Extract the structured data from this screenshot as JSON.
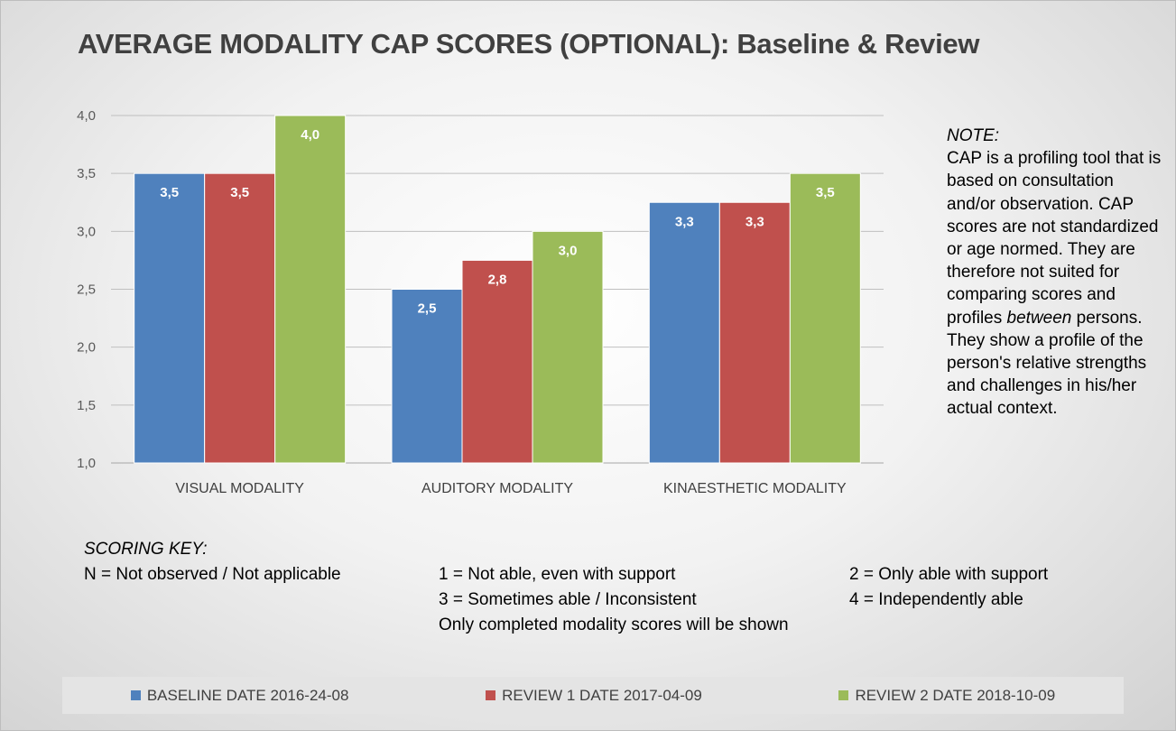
{
  "chart_data": {
    "type": "bar",
    "title": "AVERAGE MODALITY CAP SCORES (OPTIONAL): Baseline & Review",
    "categories": [
      "VISUAL MODALITY",
      "AUDITORY MODALITY",
      "KINAESTHETIC MODALITY"
    ],
    "series": [
      {
        "name": "BASELINE DATE 2016-24-08",
        "color": "#4f81bd",
        "values": [
          3.5,
          2.5,
          3.25
        ],
        "labels": [
          "3,5",
          "2,5",
          "3,3"
        ]
      },
      {
        "name": "REVIEW 1 DATE 2017-04-09",
        "color": "#c0504d",
        "values": [
          3.5,
          2.75,
          3.25
        ],
        "labels": [
          "3,5",
          "2,8",
          "3,3"
        ]
      },
      {
        "name": "REVIEW 2 DATE 2018-10-09",
        "color": "#9bbb59",
        "values": [
          4.0,
          3.0,
          3.5
        ],
        "labels": [
          "4,0",
          "3,0",
          "3,5"
        ]
      }
    ],
    "ylim": [
      1.0,
      4.0
    ],
    "yticks": [
      1.0,
      1.5,
      2.0,
      2.5,
      3.0,
      3.5,
      4.0
    ],
    "ytick_labels": [
      "1,0",
      "1,5",
      "2,0",
      "2,5",
      "3,0",
      "3,5",
      "4,0"
    ],
    "grid": true,
    "legend_position": "bottom"
  },
  "note": {
    "heading": "NOTE:",
    "text_before": "CAP is a profiling tool that is based on consultation and/or observation. CAP scores are not standardized or age normed. They are therefore not suited for comparing scores and profiles ",
    "emphasis": "between",
    "text_after": " persons. They show a profile of the person's relative strengths and challenges in his/her actual context."
  },
  "scoring_key": {
    "heading": "SCORING KEY:",
    "n": "N = Not observed / Not applicable",
    "one": "1 = Not able, even with support",
    "two": "2 = Only able with support",
    "three": "3 = Sometimes able / Inconsistent",
    "four": "4 = Independently able",
    "footnote": "Only completed modality scores will be shown"
  }
}
